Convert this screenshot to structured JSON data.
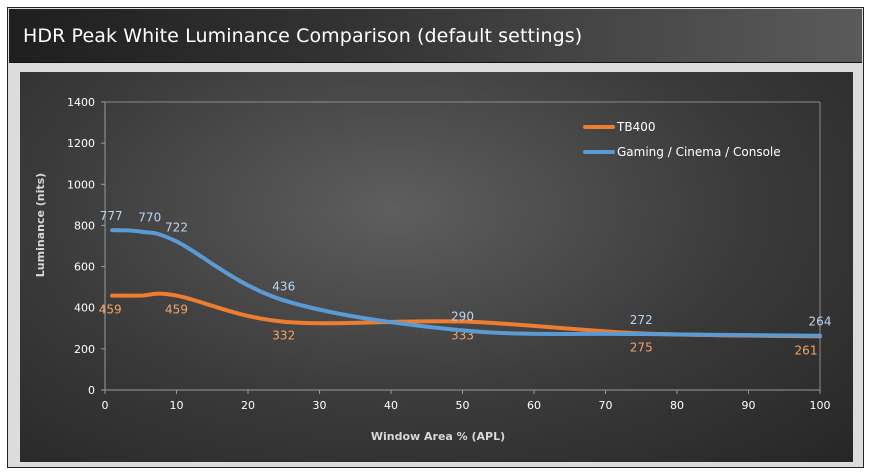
{
  "header": {
    "title": "HDR Peak White Luminance Comparison (default settings)"
  },
  "colors": {
    "tb400": "#ed7d31",
    "gaming": "#5b9bd5"
  },
  "chart_data": {
    "type": "line",
    "title": "HDR Peak White Luminance Comparison (default settings)",
    "xlabel": "Window Area % (APL)",
    "ylabel": "Luminance (nits)",
    "xlim": [
      0,
      100
    ],
    "ylim": [
      0,
      1400
    ],
    "xticks": [
      "0",
      "10",
      "20",
      "30",
      "40",
      "50",
      "60",
      "70",
      "80",
      "90",
      "100"
    ],
    "yticks": [
      "0",
      "200",
      "400",
      "600",
      "800",
      "1000",
      "1200",
      "1400"
    ],
    "grid": false,
    "legend_position": "top-right",
    "series": [
      {
        "name": "TB400",
        "color": "#ed7d31",
        "x": [
          1,
          5,
          10,
          25,
          50,
          75,
          100
        ],
        "y": [
          459,
          459,
          459,
          332,
          333,
          275,
          261
        ],
        "labels": [
          "459",
          "",
          "459",
          "332",
          "333",
          "275",
          "261"
        ]
      },
      {
        "name": "Gaming / Cinema / Console",
        "color": "#5b9bd5",
        "x": [
          1,
          5,
          10,
          25,
          50,
          75,
          100
        ],
        "y": [
          777,
          770,
          722,
          436,
          290,
          272,
          264
        ],
        "labels": [
          "777",
          "770",
          "722",
          "436",
          "290",
          "272",
          "264"
        ]
      }
    ]
  }
}
